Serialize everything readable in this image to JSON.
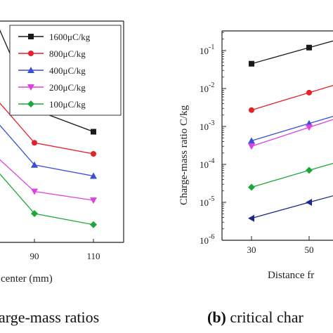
{
  "chart_data": [
    {
      "type": "line",
      "x": [
        90,
        110
      ],
      "xticks": [
        "90",
        "110"
      ],
      "xlabel": "center (mm)",
      "series": [
        {
          "name": "1600μC/kg",
          "color": "#1a1a1a",
          "marker": "square",
          "values": [
            0.6,
            0.5
          ]
        },
        {
          "name": "800μC/kg",
          "color": "#e8202a",
          "marker": "circle",
          "values": [
            0.45,
            0.4
          ]
        },
        {
          "name": "400μC/kg",
          "color": "#3a4fd8",
          "marker": "triangle-up",
          "values": [
            0.35,
            0.3
          ]
        },
        {
          "name": "200μC/kg",
          "color": "#e040e0",
          "marker": "triangle-down",
          "values": [
            0.23,
            0.19
          ]
        },
        {
          "name": "100μC/kg",
          "color": "#1aa83a",
          "marker": "diamond",
          "values": [
            0.13,
            0.08
          ]
        }
      ],
      "caption": "arge-mass ratios"
    },
    {
      "type": "line",
      "log_y": true,
      "x": [
        30,
        50
      ],
      "xticks": [
        "30",
        "50"
      ],
      "xlabel": "Distance fr",
      "ylabel": "Charge-mass ratio  C/kg",
      "yticks": [
        {
          "base": "10",
          "exp": "-1"
        },
        {
          "base": "10",
          "exp": "-2"
        },
        {
          "base": "10",
          "exp": "-3"
        },
        {
          "base": "10",
          "exp": "-4"
        },
        {
          "base": "10",
          "exp": "-5"
        },
        {
          "base": "10",
          "exp": "-6"
        }
      ],
      "ylim": [
        1e-06,
        0.25
      ],
      "series": [
        {
          "color": "#1a1a1a",
          "marker": "square",
          "values": [
            0.045,
            0.12
          ]
        },
        {
          "color": "#e8202a",
          "marker": "circle",
          "values": [
            0.0027,
            0.0078
          ]
        },
        {
          "color": "#3a4fd8",
          "marker": "triangle-up",
          "values": [
            0.00042,
            0.0012
          ]
        },
        {
          "color": "#e040e0",
          "marker": "triangle-down",
          "values": [
            0.0003,
            0.00095
          ]
        },
        {
          "color": "#1aa83a",
          "marker": "diamond",
          "values": [
            2.5e-05,
            7e-05
          ]
        },
        {
          "color": "#1a2a8a",
          "marker": "triangle-left",
          "values": [
            3.8e-06,
            1e-05
          ]
        }
      ],
      "caption_label": "(b)",
      "caption": " critical char"
    }
  ]
}
